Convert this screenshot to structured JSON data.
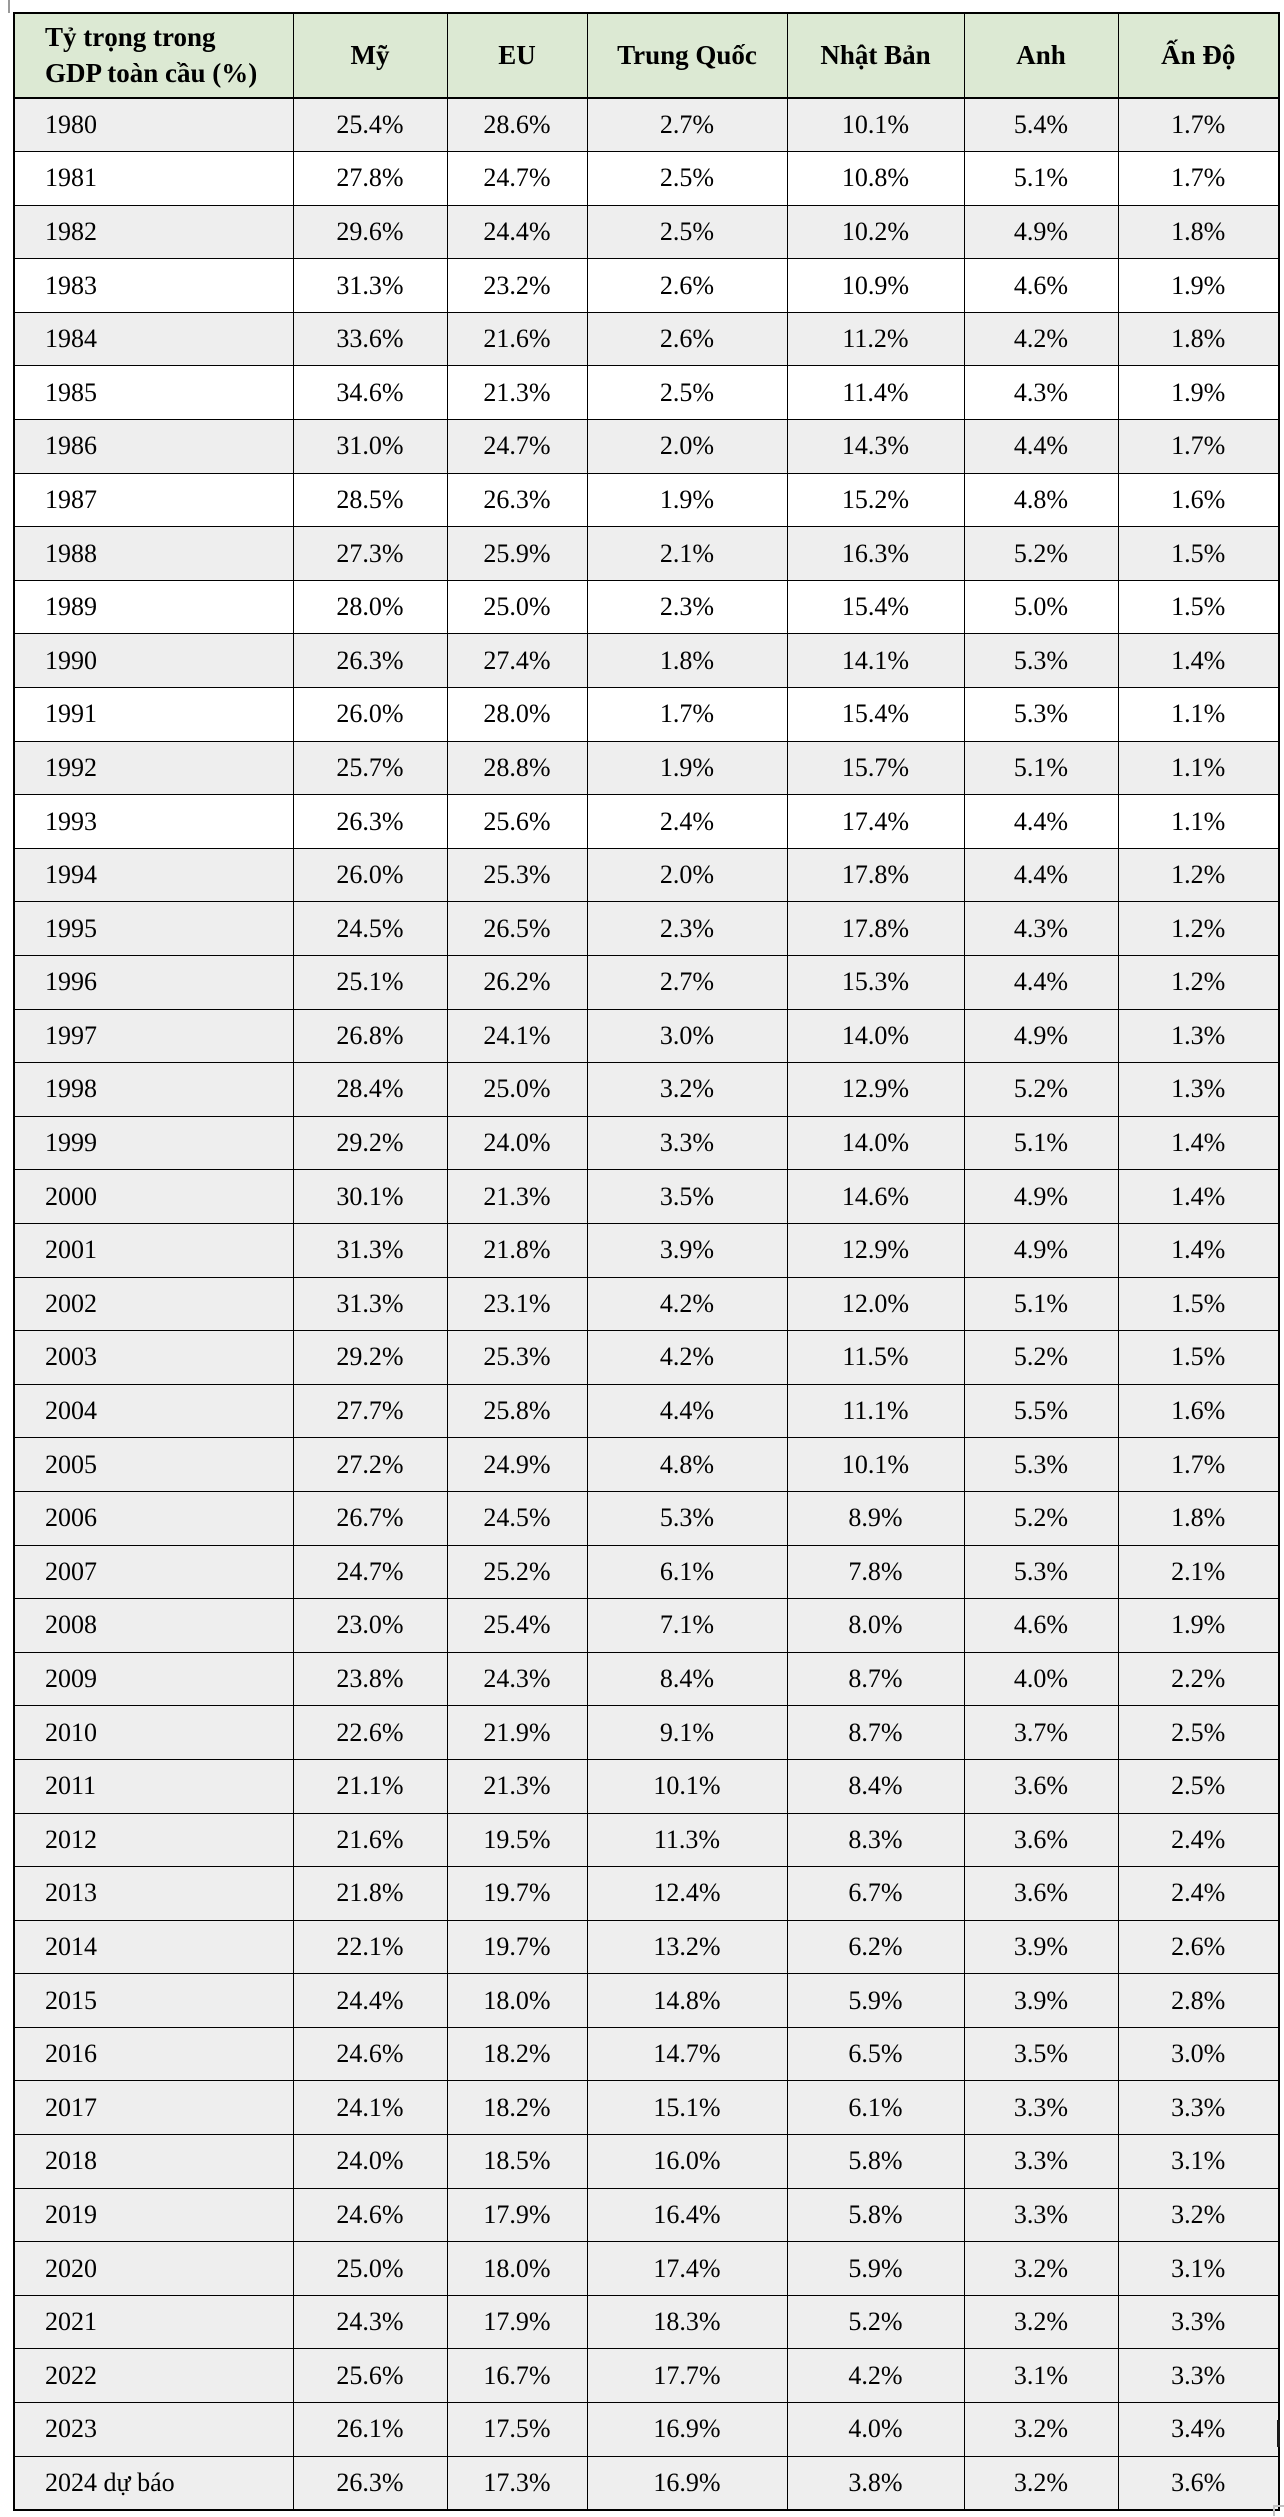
{
  "chart_data": {
    "type": "table",
    "title": "Tỷ trọng trong GDP toàn cầu (%)",
    "corner_header_lines": [
      "Tỷ trọng trong",
      "GDP toàn cầu (%)"
    ],
    "columns": [
      "Mỹ",
      "EU",
      "Trung Quốc",
      "Nhật Bản",
      "Anh",
      "Ấn Độ"
    ],
    "rows": [
      {
        "year": "1980",
        "values": [
          "25.4%",
          "28.6%",
          "2.7%",
          "10.1%",
          "5.4%",
          "1.7%"
        ],
        "shaded": true
      },
      {
        "year": "1981",
        "values": [
          "27.8%",
          "24.7%",
          "2.5%",
          "10.8%",
          "5.1%",
          "1.7%"
        ],
        "shaded": false
      },
      {
        "year": "1982",
        "values": [
          "29.6%",
          "24.4%",
          "2.5%",
          "10.2%",
          "4.9%",
          "1.8%"
        ],
        "shaded": true
      },
      {
        "year": "1983",
        "values": [
          "31.3%",
          "23.2%",
          "2.6%",
          "10.9%",
          "4.6%",
          "1.9%"
        ],
        "shaded": false
      },
      {
        "year": "1984",
        "values": [
          "33.6%",
          "21.6%",
          "2.6%",
          "11.2%",
          "4.2%",
          "1.8%"
        ],
        "shaded": true
      },
      {
        "year": "1985",
        "values": [
          "34.6%",
          "21.3%",
          "2.5%",
          "11.4%",
          "4.3%",
          "1.9%"
        ],
        "shaded": false
      },
      {
        "year": "1986",
        "values": [
          "31.0%",
          "24.7%",
          "2.0%",
          "14.3%",
          "4.4%",
          "1.7%"
        ],
        "shaded": true
      },
      {
        "year": "1987",
        "values": [
          "28.5%",
          "26.3%",
          "1.9%",
          "15.2%",
          "4.8%",
          "1.6%"
        ],
        "shaded": false
      },
      {
        "year": "1988",
        "values": [
          "27.3%",
          "25.9%",
          "2.1%",
          "16.3%",
          "5.2%",
          "1.5%"
        ],
        "shaded": true
      },
      {
        "year": "1989",
        "values": [
          "28.0%",
          "25.0%",
          "2.3%",
          "15.4%",
          "5.0%",
          "1.5%"
        ],
        "shaded": false
      },
      {
        "year": "1990",
        "values": [
          "26.3%",
          "27.4%",
          "1.8%",
          "14.1%",
          "5.3%",
          "1.4%"
        ],
        "shaded": true
      },
      {
        "year": "1991",
        "values": [
          "26.0%",
          "28.0%",
          "1.7%",
          "15.4%",
          "5.3%",
          "1.1%"
        ],
        "shaded": false
      },
      {
        "year": "1992",
        "values": [
          "25.7%",
          "28.8%",
          "1.9%",
          "15.7%",
          "5.1%",
          "1.1%"
        ],
        "shaded": true
      },
      {
        "year": "1993",
        "values": [
          "26.3%",
          "25.6%",
          "2.4%",
          "17.4%",
          "4.4%",
          "1.1%"
        ],
        "shaded": false
      },
      {
        "year": "1994",
        "values": [
          "26.0%",
          "25.3%",
          "2.0%",
          "17.8%",
          "4.4%",
          "1.2%"
        ],
        "shaded": true
      },
      {
        "year": "1995",
        "values": [
          "24.5%",
          "26.5%",
          "2.3%",
          "17.8%",
          "4.3%",
          "1.2%"
        ],
        "shaded": true
      },
      {
        "year": "1996",
        "values": [
          "25.1%",
          "26.2%",
          "2.7%",
          "15.3%",
          "4.4%",
          "1.2%"
        ],
        "shaded": true
      },
      {
        "year": "1997",
        "values": [
          "26.8%",
          "24.1%",
          "3.0%",
          "14.0%",
          "4.9%",
          "1.3%"
        ],
        "shaded": true
      },
      {
        "year": "1998",
        "values": [
          "28.4%",
          "25.0%",
          "3.2%",
          "12.9%",
          "5.2%",
          "1.3%"
        ],
        "shaded": true
      },
      {
        "year": "1999",
        "values": [
          "29.2%",
          "24.0%",
          "3.3%",
          "14.0%",
          "5.1%",
          "1.4%"
        ],
        "shaded": true
      },
      {
        "year": "2000",
        "values": [
          "30.1%",
          "21.3%",
          "3.5%",
          "14.6%",
          "4.9%",
          "1.4%"
        ],
        "shaded": true
      },
      {
        "year": "2001",
        "values": [
          "31.3%",
          "21.8%",
          "3.9%",
          "12.9%",
          "4.9%",
          "1.4%"
        ],
        "shaded": true
      },
      {
        "year": "2002",
        "values": [
          "31.3%",
          "23.1%",
          "4.2%",
          "12.0%",
          "5.1%",
          "1.5%"
        ],
        "shaded": true
      },
      {
        "year": "2003",
        "values": [
          "29.2%",
          "25.3%",
          "4.2%",
          "11.5%",
          "5.2%",
          "1.5%"
        ],
        "shaded": true
      },
      {
        "year": "2004",
        "values": [
          "27.7%",
          "25.8%",
          "4.4%",
          "11.1%",
          "5.5%",
          "1.6%"
        ],
        "shaded": true
      },
      {
        "year": "2005",
        "values": [
          "27.2%",
          "24.9%",
          "4.8%",
          "10.1%",
          "5.3%",
          "1.7%"
        ],
        "shaded": true
      },
      {
        "year": "2006",
        "values": [
          "26.7%",
          "24.5%",
          "5.3%",
          "8.9%",
          "5.2%",
          "1.8%"
        ],
        "shaded": true
      },
      {
        "year": "2007",
        "values": [
          "24.7%",
          "25.2%",
          "6.1%",
          "7.8%",
          "5.3%",
          "2.1%"
        ],
        "shaded": true
      },
      {
        "year": "2008",
        "values": [
          "23.0%",
          "25.4%",
          "7.1%",
          "8.0%",
          "4.6%",
          "1.9%"
        ],
        "shaded": true
      },
      {
        "year": "2009",
        "values": [
          "23.8%",
          "24.3%",
          "8.4%",
          "8.7%",
          "4.0%",
          "2.2%"
        ],
        "shaded": true
      },
      {
        "year": "2010",
        "values": [
          "22.6%",
          "21.9%",
          "9.1%",
          "8.7%",
          "3.7%",
          "2.5%"
        ],
        "shaded": true
      },
      {
        "year": "2011",
        "values": [
          "21.1%",
          "21.3%",
          "10.1%",
          "8.4%",
          "3.6%",
          "2.5%"
        ],
        "shaded": true
      },
      {
        "year": "2012",
        "values": [
          "21.6%",
          "19.5%",
          "11.3%",
          "8.3%",
          "3.6%",
          "2.4%"
        ],
        "shaded": true
      },
      {
        "year": "2013",
        "values": [
          "21.8%",
          "19.7%",
          "12.4%",
          "6.7%",
          "3.6%",
          "2.4%"
        ],
        "shaded": true
      },
      {
        "year": "2014",
        "values": [
          "22.1%",
          "19.7%",
          "13.2%",
          "6.2%",
          "3.9%",
          "2.6%"
        ],
        "shaded": true
      },
      {
        "year": "2015",
        "values": [
          "24.4%",
          "18.0%",
          "14.8%",
          "5.9%",
          "3.9%",
          "2.8%"
        ],
        "shaded": true
      },
      {
        "year": "2016",
        "values": [
          "24.6%",
          "18.2%",
          "14.7%",
          "6.5%",
          "3.5%",
          "3.0%"
        ],
        "shaded": true
      },
      {
        "year": "2017",
        "values": [
          "24.1%",
          "18.2%",
          "15.1%",
          "6.1%",
          "3.3%",
          "3.3%"
        ],
        "shaded": true
      },
      {
        "year": "2018",
        "values": [
          "24.0%",
          "18.5%",
          "16.0%",
          "5.8%",
          "3.3%",
          "3.1%"
        ],
        "shaded": true
      },
      {
        "year": "2019",
        "values": [
          "24.6%",
          "17.9%",
          "16.4%",
          "5.8%",
          "3.3%",
          "3.2%"
        ],
        "shaded": true
      },
      {
        "year": "2020",
        "values": [
          "25.0%",
          "18.0%",
          "17.4%",
          "5.9%",
          "3.2%",
          "3.1%"
        ],
        "shaded": true
      },
      {
        "year": "2021",
        "values": [
          "24.3%",
          "17.9%",
          "18.3%",
          "5.2%",
          "3.2%",
          "3.3%"
        ],
        "shaded": true
      },
      {
        "year": "2022",
        "values": [
          "25.6%",
          "16.7%",
          "17.7%",
          "4.2%",
          "3.1%",
          "3.3%"
        ],
        "shaded": true
      },
      {
        "year": "2023",
        "values": [
          "26.1%",
          "17.5%",
          "16.9%",
          "4.0%",
          "3.2%",
          "3.4%"
        ],
        "shaded": true
      },
      {
        "year": "2024 dự báo",
        "values": [
          "26.3%",
          "17.3%",
          "16.9%",
          "3.8%",
          "3.2%",
          "3.6%"
        ],
        "shaded": true
      }
    ]
  },
  "colors": {
    "header_bg": "#dce9d3",
    "shaded_row_bg": "#eeeeee",
    "plain_row_bg": "#ffffff",
    "border": "#000000",
    "text": "#000000"
  }
}
